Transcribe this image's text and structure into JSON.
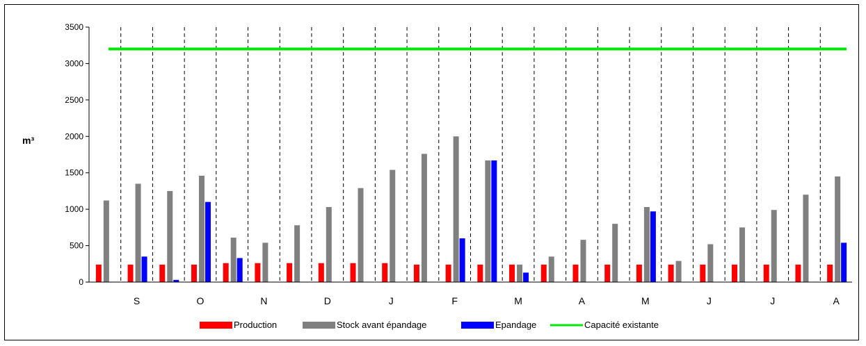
{
  "chart_data": {
    "type": "bar",
    "ylabel": "m³",
    "ylim": [
      0,
      3500
    ],
    "yticks": [
      0,
      500,
      1000,
      1500,
      2000,
      2500,
      3000,
      3500
    ],
    "categories": [
      "",
      "S",
      "",
      "O",
      "",
      "N",
      "",
      "D",
      "",
      "J",
      "",
      "F",
      "",
      "M",
      "",
      "A",
      "",
      "M",
      "",
      "J",
      "",
      "J",
      "",
      "A"
    ],
    "grid": {
      "vertical_dashed_separators": true,
      "horizontal": false
    },
    "legend": "bottom",
    "series": [
      {
        "name": "Production",
        "color": "#ff0000",
        "values": [
          240,
          240,
          240,
          240,
          260,
          260,
          260,
          260,
          260,
          260,
          240,
          240,
          240,
          240,
          240,
          240,
          240,
          240,
          240,
          240,
          240,
          240,
          240,
          240
        ]
      },
      {
        "name": "Stock avant épandage",
        "color": "#808080",
        "values": [
          1120,
          1350,
          1250,
          1460,
          610,
          540,
          780,
          1030,
          1290,
          1540,
          1760,
          2000,
          1670,
          240,
          350,
          580,
          800,
          1030,
          290,
          520,
          750,
          990,
          1200,
          1450
        ]
      },
      {
        "name": "Epandage",
        "color": "#0000ff",
        "values": [
          0,
          350,
          30,
          1100,
          330,
          0,
          0,
          0,
          0,
          0,
          0,
          600,
          1670,
          130,
          0,
          0,
          0,
          970,
          0,
          0,
          0,
          0,
          0,
          540
        ]
      },
      {
        "name": "Capacité existante",
        "color": "#00e600",
        "type": "line",
        "value": 3200
      }
    ]
  }
}
